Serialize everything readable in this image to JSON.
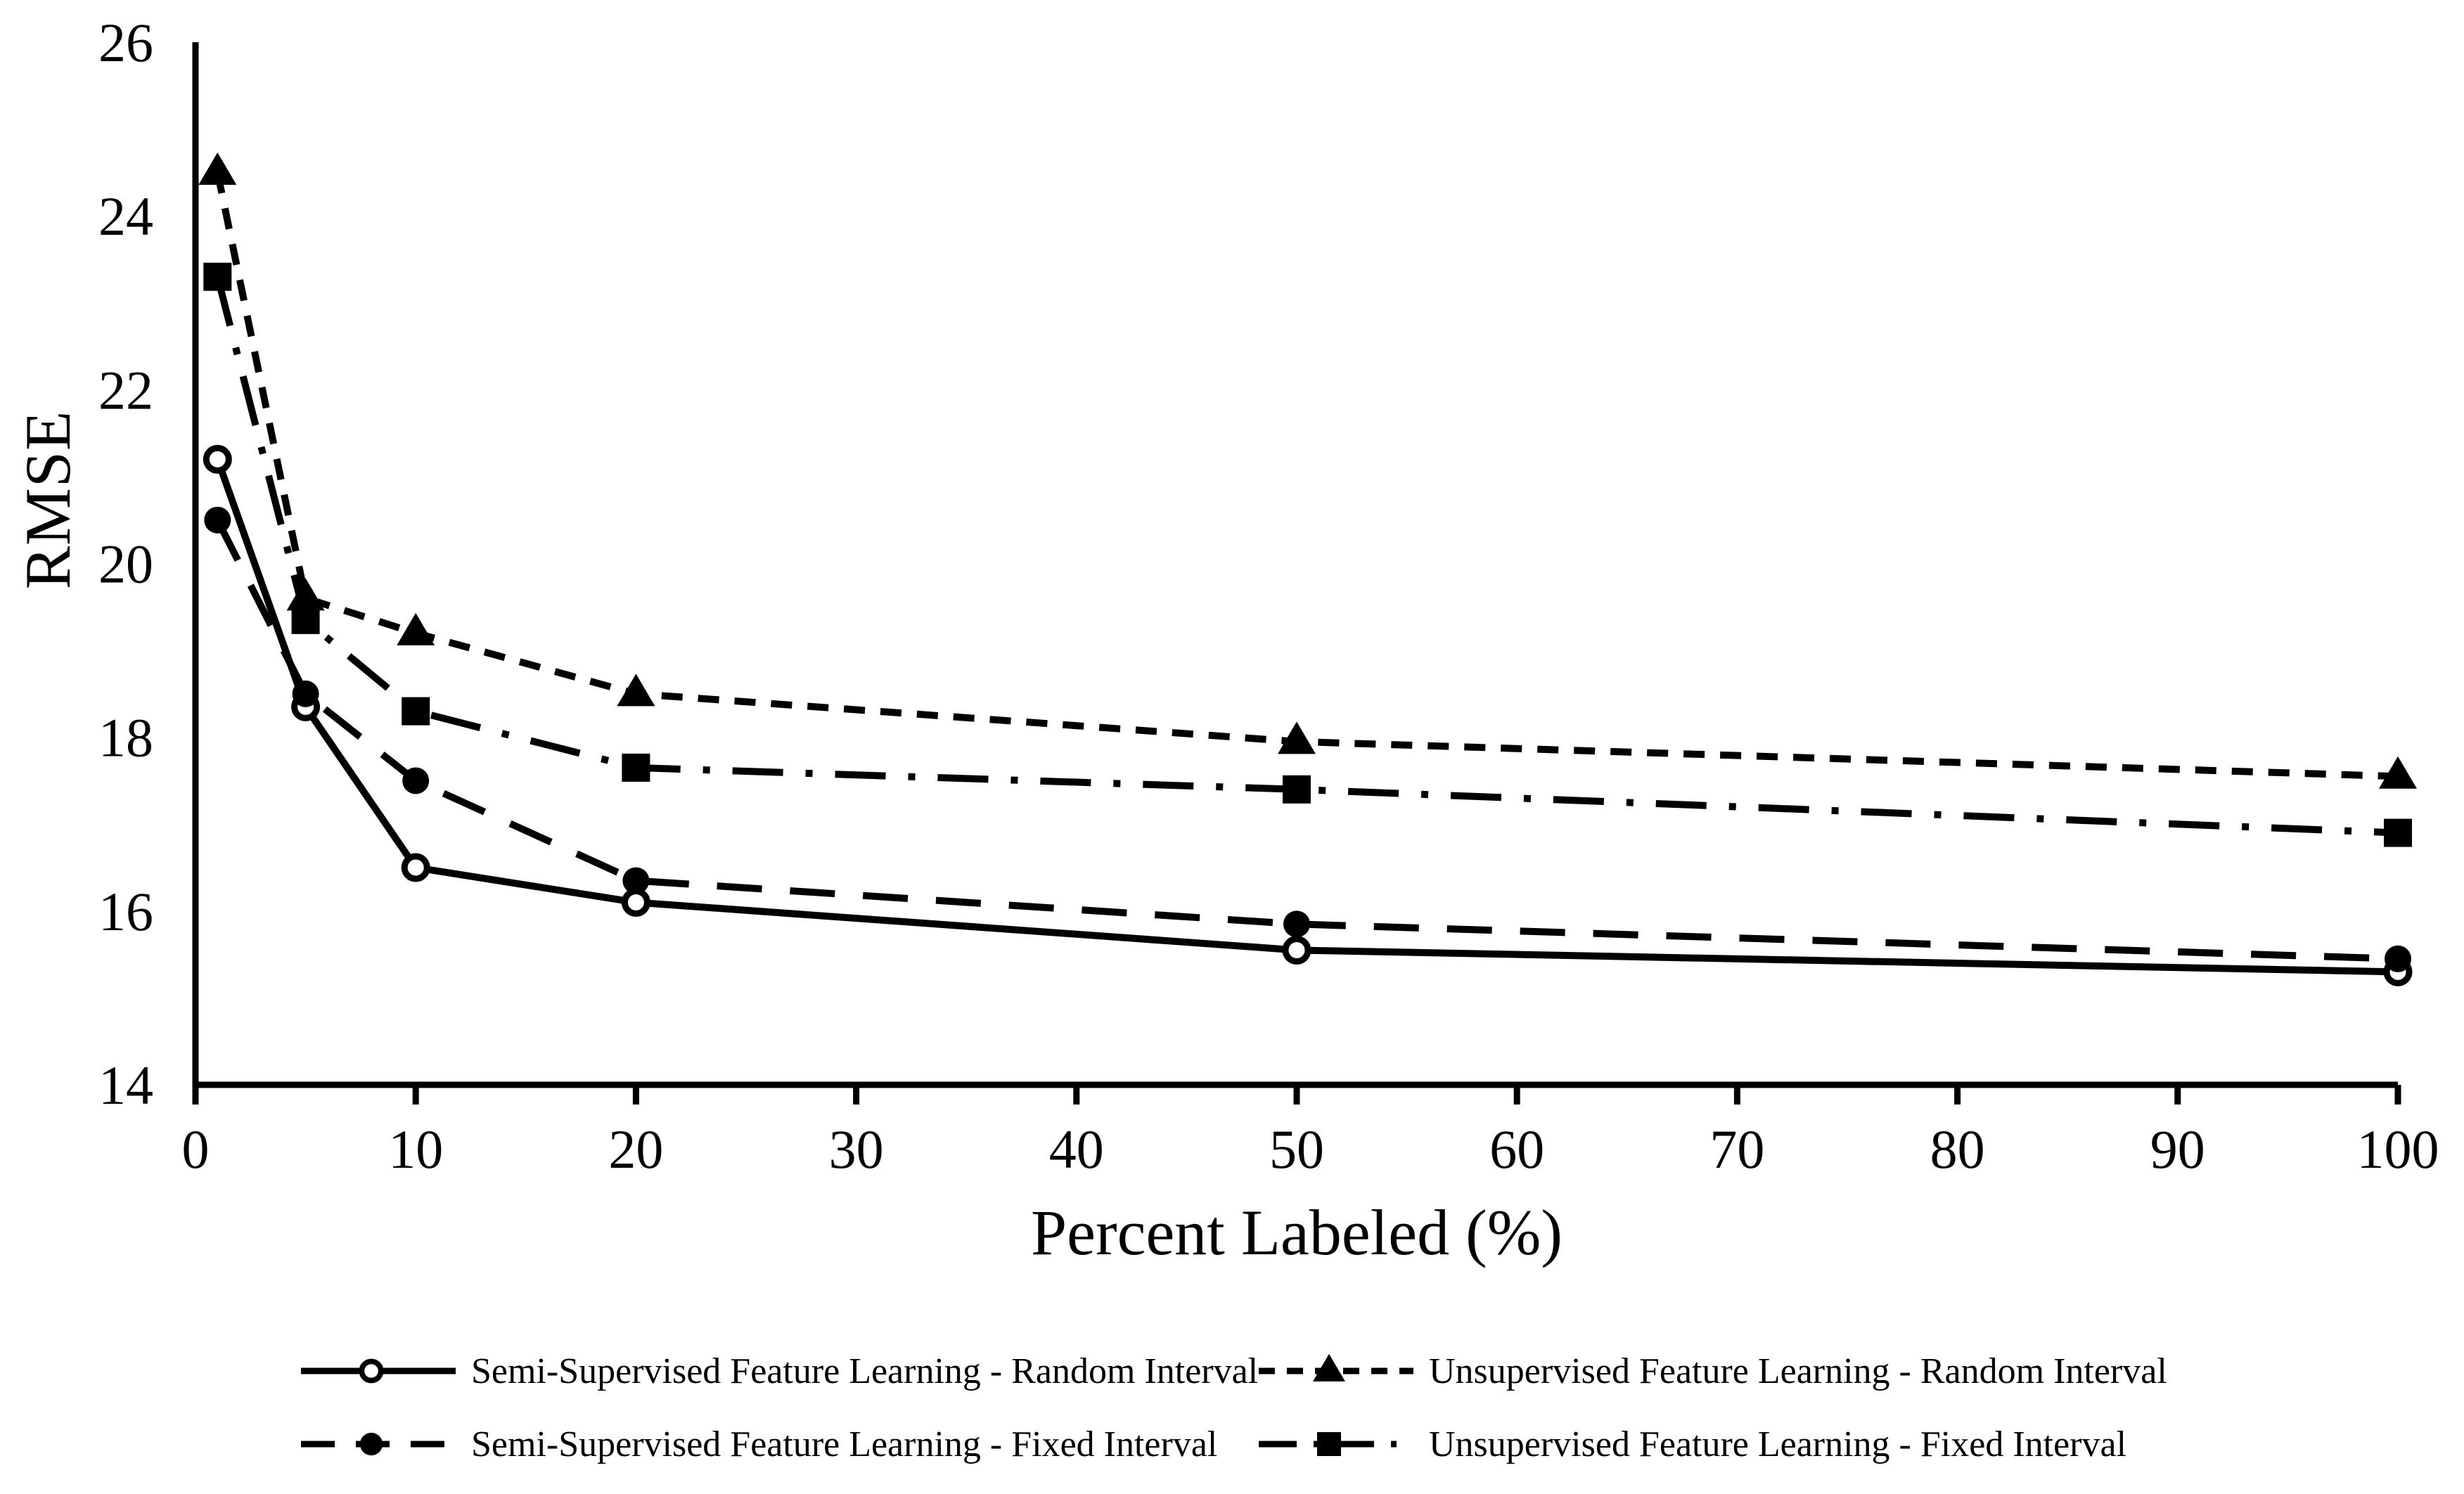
{
  "figure": {
    "background": "#ffffff",
    "ink_color": "#000000"
  },
  "chart_data": {
    "type": "line",
    "title": "",
    "xlabel": "Percent Labeled (%)",
    "ylabel": "RMSE",
    "xlim": [
      0,
      100
    ],
    "ylim": [
      14,
      26
    ],
    "x_ticks": [
      0,
      10,
      20,
      30,
      40,
      50,
      60,
      70,
      80,
      90,
      100
    ],
    "y_ticks": [
      14,
      16,
      18,
      20,
      22,
      24,
      26
    ],
    "grid": false,
    "legend_position": "bottom",
    "x": [
      1,
      5,
      10,
      20,
      50,
      100
    ],
    "series": [
      {
        "name": "Semi-Supervised Feature Learning - Random Interval",
        "values": [
          21.2,
          18.35,
          16.5,
          16.1,
          15.55,
          15.3
        ],
        "line_style": "solid",
        "marker": "open-circle"
      },
      {
        "name": "Unsupervised Feature Learning - Random Interval",
        "values": [
          24.5,
          19.6,
          19.2,
          18.5,
          17.95,
          17.55
        ],
        "line_style": "short-dash",
        "marker": "filled-triangle"
      },
      {
        "name": "Semi-Supervised Feature Learning - Fixed Interval",
        "values": [
          20.5,
          18.5,
          17.5,
          16.35,
          15.85,
          15.45
        ],
        "line_style": "long-dash",
        "marker": "filled-circle"
      },
      {
        "name": "Unsupervised Feature Learning - Fixed Interval",
        "values": [
          23.3,
          19.35,
          18.3,
          17.65,
          17.4,
          16.9
        ],
        "line_style": "dash-dot",
        "marker": "filled-square"
      }
    ]
  }
}
